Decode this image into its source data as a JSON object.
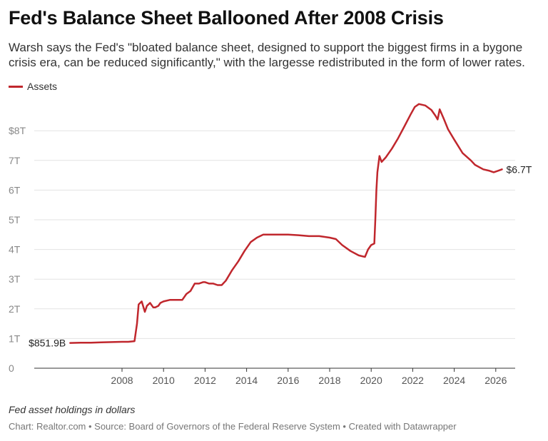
{
  "header": {
    "title": "Fed's Balance Sheet Ballooned After 2008 Crisis",
    "subtitle": "Warsh says the Fed's \"bloated balance sheet, designed to support the biggest firms in a bygone crisis era, can be reduced significantly,\" with the largesse redistributed in the form of lower rates."
  },
  "legend": {
    "label": "Assets",
    "color": "#c0272d"
  },
  "footer": {
    "note": "Fed asset holdings in dollars",
    "credit": "Chart: Realtor.com • Source: Board of Governors of the Federal Reserve System • Created with Datawrapper"
  },
  "chart_data": {
    "type": "line",
    "title": "Fed's Balance Sheet Ballooned After 2008 Crisis",
    "xlabel": "",
    "ylabel": "",
    "xlim": [
      2003,
      2026.3
    ],
    "ylim": [
      0,
      8.5
    ],
    "grid": true,
    "legend_position": "top-left",
    "y_ticks": [
      {
        "value": 0,
        "label": "0"
      },
      {
        "value": 1,
        "label": "1T"
      },
      {
        "value": 2,
        "label": "2T"
      },
      {
        "value": 3,
        "label": "3T"
      },
      {
        "value": 4,
        "label": "4T"
      },
      {
        "value": 5,
        "label": "5T"
      },
      {
        "value": 6,
        "label": "6T"
      },
      {
        "value": 7,
        "label": "7T"
      },
      {
        "value": 8,
        "label": "$8T"
      }
    ],
    "x_ticks": [
      {
        "value": 2008,
        "label": "2008"
      },
      {
        "value": 2010,
        "label": "2010"
      },
      {
        "value": 2012,
        "label": "2012"
      },
      {
        "value": 2014,
        "label": "2014"
      },
      {
        "value": 2016,
        "label": "2016"
      },
      {
        "value": 2018,
        "label": "2018"
      },
      {
        "value": 2020,
        "label": "2020"
      },
      {
        "value": 2022,
        "label": "2022"
      },
      {
        "value": 2024,
        "label": "2024"
      },
      {
        "value": 2026,
        "label": "2026"
      }
    ],
    "annotations": [
      {
        "x": 2005.5,
        "y": 0.852,
        "label": "$851.9B"
      },
      {
        "x": 2026.3,
        "y": 6.7,
        "label": "$6.7T"
      }
    ],
    "series": [
      {
        "name": "Assets",
        "color": "#c0272d",
        "x": [
          2005.5,
          2006.0,
          2006.5,
          2007.0,
          2007.5,
          2008.0,
          2008.3,
          2008.6,
          2008.72,
          2008.8,
          2008.95,
          2009.1,
          2009.2,
          2009.35,
          2009.5,
          2009.6,
          2009.75,
          2009.85,
          2010.0,
          2010.3,
          2010.6,
          2010.9,
          2011.1,
          2011.3,
          2011.5,
          2011.7,
          2011.9,
          2012.0,
          2012.2,
          2012.4,
          2012.6,
          2012.8,
          2013.0,
          2013.3,
          2013.6,
          2013.9,
          2014.2,
          2014.5,
          2014.8,
          2015.0,
          2015.5,
          2016.0,
          2016.5,
          2017.0,
          2017.5,
          2018.0,
          2018.3,
          2018.6,
          2019.0,
          2019.4,
          2019.7,
          2019.85,
          2020.0,
          2020.15,
          2020.2,
          2020.25,
          2020.3,
          2020.4,
          2020.5,
          2020.7,
          2021.0,
          2021.3,
          2021.6,
          2021.9,
          2022.1,
          2022.3,
          2022.6,
          2022.9,
          2023.1,
          2023.2,
          2023.3,
          2023.5,
          2023.7,
          2024.0,
          2024.4,
          2024.8,
          2025.0,
          2025.4,
          2025.7,
          2025.9,
          2026.1,
          2026.3
        ],
        "values": [
          0.85,
          0.86,
          0.86,
          0.87,
          0.88,
          0.89,
          0.89,
          0.91,
          1.5,
          2.15,
          2.25,
          1.9,
          2.1,
          2.2,
          2.05,
          2.05,
          2.1,
          2.2,
          2.25,
          2.3,
          2.3,
          2.3,
          2.5,
          2.6,
          2.85,
          2.85,
          2.9,
          2.9,
          2.85,
          2.85,
          2.8,
          2.8,
          2.95,
          3.3,
          3.6,
          3.95,
          4.25,
          4.4,
          4.5,
          4.5,
          4.5,
          4.5,
          4.48,
          4.45,
          4.45,
          4.4,
          4.35,
          4.15,
          3.95,
          3.8,
          3.75,
          4.0,
          4.15,
          4.2,
          5.0,
          6.0,
          6.6,
          7.15,
          6.95,
          7.1,
          7.4,
          7.75,
          8.15,
          8.55,
          8.8,
          8.9,
          8.85,
          8.7,
          8.5,
          8.38,
          8.72,
          8.4,
          8.05,
          7.7,
          7.25,
          7.0,
          6.85,
          6.7,
          6.65,
          6.6,
          6.65,
          6.7
        ]
      }
    ]
  }
}
